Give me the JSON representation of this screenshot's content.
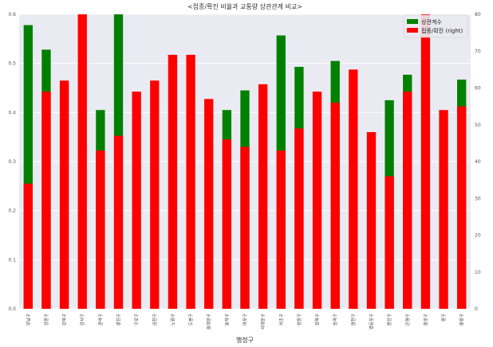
{
  "chart_data": {
    "type": "bar",
    "title": "<접종/확진 비율과 교통량 상관관계 비교>",
    "xlabel": "행정구",
    "ylabel_left": "",
    "ylabel_right": "",
    "ylim_left": [
      0,
      0.6
    ],
    "ylim_right": [
      0,
      80
    ],
    "yticks_left": [
      "0.0",
      "0.1",
      "0.2",
      "0.3",
      "0.4",
      "0.5",
      "0.6"
    ],
    "yticks_right": [
      "0",
      "10",
      "20",
      "30",
      "40",
      "50",
      "60",
      "70",
      "80"
    ],
    "grid": true,
    "legend_position": "top-right",
    "categories": [
      "강남구",
      "강동구",
      "강북구",
      "강서구",
      "관악구",
      "광진구",
      "구로구",
      "금천구",
      "노원구",
      "도봉구",
      "동대문구",
      "동작구",
      "마포구",
      "서대문구",
      "서초구",
      "성동구",
      "성북구",
      "송파구",
      "양천구",
      "영등포구",
      "용산구",
      "은평구",
      "종로구",
      "중구",
      "중랑구"
    ],
    "series": [
      {
        "name": "상관계수",
        "color": "#008000",
        "axis": "left",
        "values": [
          0.578,
          0.528,
          0.459,
          0.0,
          0.405,
          0.6,
          0.0,
          0.0,
          0.0,
          0.0,
          0.0,
          0.405,
          0.445,
          0.0,
          0.557,
          0.493,
          0.0,
          0.505,
          0.0,
          0.0,
          0.425,
          0.477,
          0.0,
          0.0,
          0.467
        ]
      },
      {
        "name": "접종/확진 (right)",
        "color": "#ff0000",
        "axis": "right",
        "values": [
          34,
          59,
          62,
          80,
          43,
          47,
          59,
          62,
          69,
          69,
          57,
          46,
          44,
          61,
          43,
          49,
          59,
          56,
          65,
          48,
          36,
          59,
          81,
          54,
          55
        ]
      }
    ]
  }
}
